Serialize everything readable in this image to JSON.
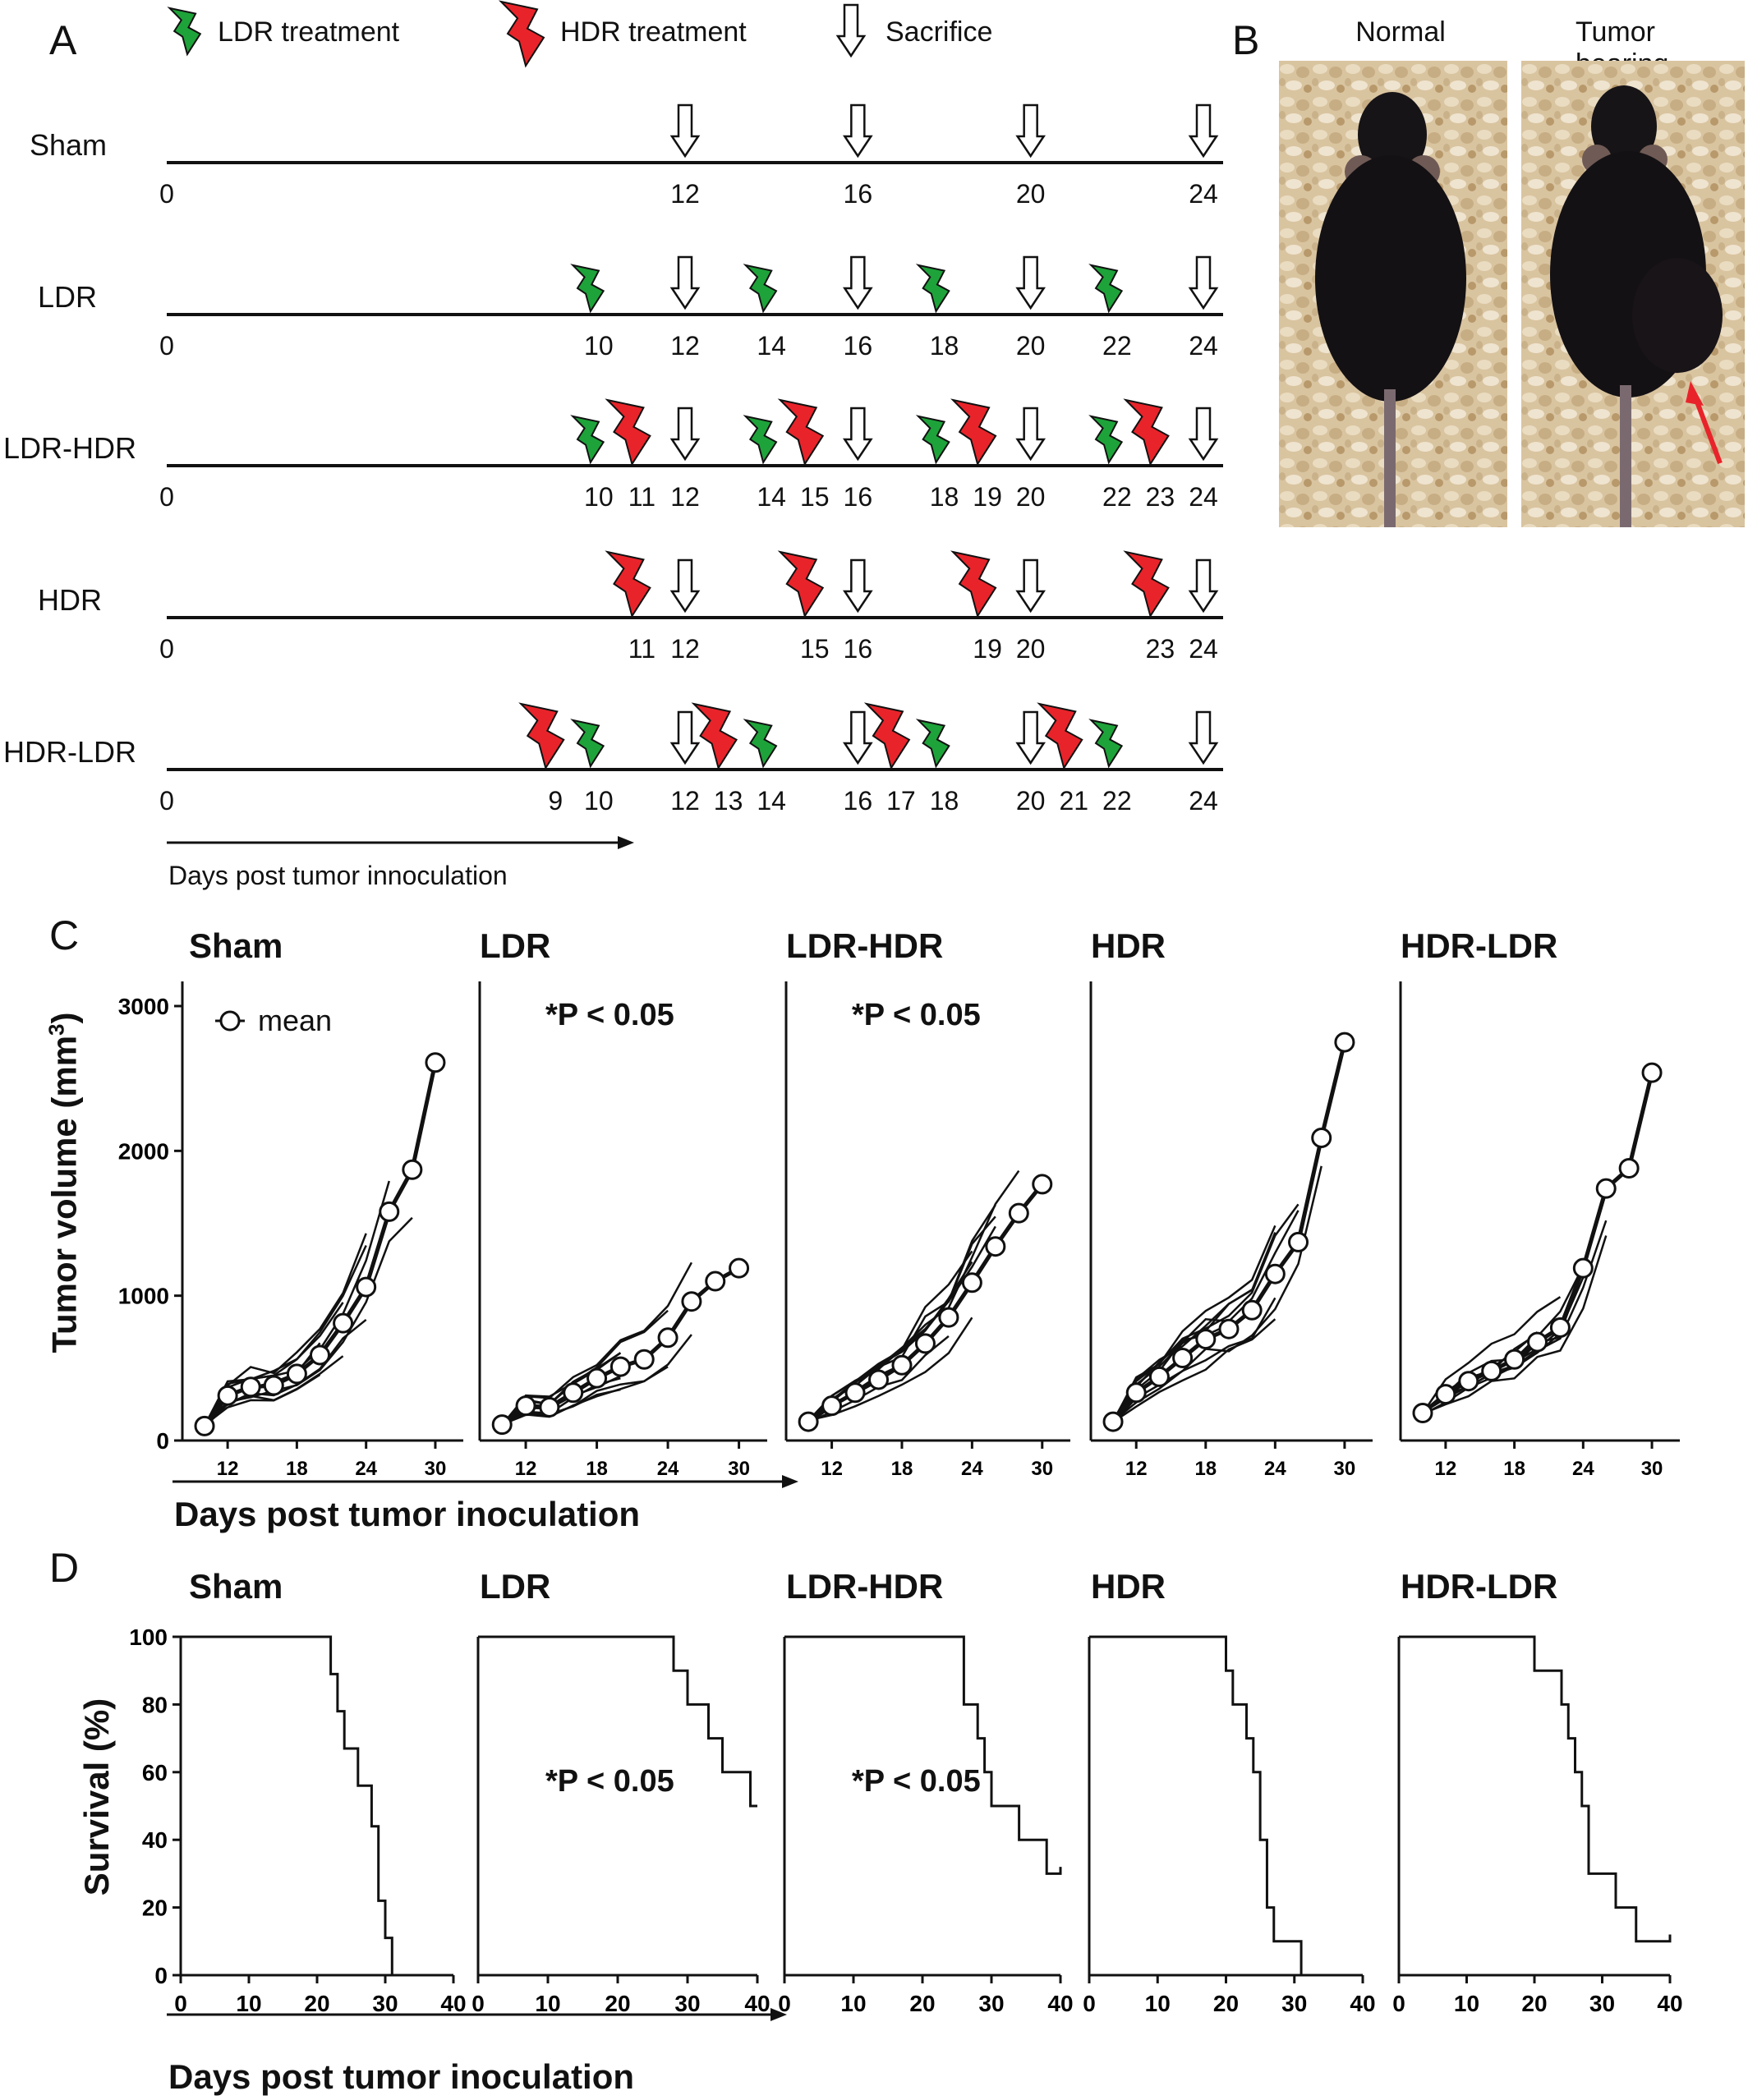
{
  "panel_a": {
    "letter": "A",
    "legend": {
      "ldr": "LDR treatment",
      "hdr": "HDR treatment",
      "sacrifice": "Sacrifice"
    },
    "xlabel": "Days post tumor innoculation",
    "day_max": 24,
    "colors": {
      "ldr": "#1ea33a",
      "hdr": "#e8242a"
    },
    "groups": [
      {
        "name": "Sham",
        "ldr": [],
        "hdr": [],
        "sac": [
          12,
          16,
          20,
          24
        ],
        "ticks": [
          0,
          12,
          16,
          20,
          24
        ]
      },
      {
        "name": "LDR",
        "ldr": [
          10,
          14,
          18,
          22
        ],
        "hdr": [],
        "sac": [
          12,
          16,
          20,
          24
        ],
        "ticks": [
          0,
          10,
          12,
          14,
          16,
          18,
          20,
          22,
          24
        ]
      },
      {
        "name": "LDR-HDR",
        "ldr": [
          10,
          14,
          18,
          22
        ],
        "hdr": [
          11,
          15,
          19,
          23
        ],
        "sac": [
          12,
          16,
          20,
          24
        ],
        "ticks": [
          0,
          10,
          11,
          12,
          14,
          15,
          16,
          18,
          19,
          20,
          22,
          23,
          24
        ]
      },
      {
        "name": "HDR",
        "ldr": [],
        "hdr": [
          11,
          15,
          19,
          23
        ],
        "sac": [
          12,
          16,
          20,
          24
        ],
        "ticks": [
          0,
          11,
          12,
          15,
          16,
          19,
          20,
          23,
          24
        ]
      },
      {
        "name": "HDR-LDR",
        "ldr": [
          10,
          14,
          18,
          22
        ],
        "hdr": [
          9,
          13,
          17,
          21
        ],
        "sac": [
          12,
          16,
          20,
          24
        ],
        "ticks": [
          0,
          9,
          10,
          12,
          13,
          14,
          16,
          17,
          18,
          20,
          21,
          22,
          24
        ]
      }
    ]
  },
  "panel_b": {
    "letter": "B",
    "photos": [
      {
        "title": "Normal"
      },
      {
        "title": "Tumor bearing"
      }
    ]
  },
  "panel_c": {
    "letter": "C",
    "ylabel": "Tumor volume (mm",
    "ylabel_sup": "3",
    "ylabel_close": ")",
    "xlabel": "Days post tumor inoculation",
    "legend_mean": "mean",
    "y_ticks": [
      0,
      1000,
      2000,
      3000
    ],
    "x_ticks": [
      12,
      18,
      24,
      30
    ],
    "pvalues": [
      "",
      "*P < 0.05",
      "*P < 0.05",
      "",
      ""
    ]
  },
  "panel_d": {
    "letter": "D",
    "ylabel": "Survival (%)",
    "xlabel": "Days post tumor inoculation",
    "y_ticks": [
      0,
      20,
      40,
      60,
      80,
      100
    ],
    "x_ticks": [
      0,
      10,
      20,
      30,
      40
    ],
    "pvalues": [
      "",
      "*P < 0.05",
      "*P < 0.05",
      "",
      ""
    ]
  },
  "chart_data": [
    {
      "type": "line",
      "panel": "C",
      "xlabel": "Days post tumor inoculation",
      "ylabel": "Tumor volume (mm3)",
      "xlim": [
        9.5,
        31
      ],
      "ylim": [
        0,
        3000
      ],
      "series": [
        {
          "name": "Sham",
          "x": [
            10,
            12,
            14,
            16,
            18,
            20,
            22,
            24,
            26,
            28,
            30
          ],
          "values": [
            100,
            310,
            370,
            380,
            460,
            590,
            810,
            1060,
            1580,
            1870,
            2610
          ]
        },
        {
          "name": "LDR",
          "x": [
            10,
            12,
            14,
            16,
            18,
            20,
            22,
            24,
            26,
            28,
            30
          ],
          "values": [
            110,
            240,
            230,
            330,
            430,
            510,
            560,
            710,
            960,
            1100,
            1190
          ]
        },
        {
          "name": "LDR-HDR",
          "x": [
            10,
            12,
            14,
            16,
            18,
            20,
            22,
            24,
            26,
            28,
            30
          ],
          "values": [
            130,
            240,
            330,
            420,
            520,
            670,
            850,
            1090,
            1340,
            1570,
            1770
          ]
        },
        {
          "name": "HDR",
          "x": [
            10,
            12,
            14,
            16,
            18,
            20,
            22,
            24,
            26,
            28,
            30
          ],
          "values": [
            130,
            330,
            440,
            570,
            700,
            770,
            900,
            1150,
            1370,
            2090,
            2750
          ]
        },
        {
          "name": "HDR-LDR",
          "x": [
            10,
            12,
            14,
            16,
            18,
            20,
            22,
            24,
            26,
            28,
            30
          ],
          "values": [
            190,
            320,
            410,
            480,
            560,
            680,
            780,
            1190,
            1740,
            1880,
            2540
          ]
        }
      ]
    },
    {
      "type": "line",
      "panel": "D",
      "xlabel": "Days post tumor inoculation",
      "ylabel": "Survival (%)",
      "xlim": [
        0,
        40
      ],
      "ylim": [
        0,
        100
      ],
      "series": [
        {
          "name": "Sham",
          "steps": [
            [
              0,
              100
            ],
            [
              22,
              100
            ],
            [
              22,
              89
            ],
            [
              23,
              89
            ],
            [
              23,
              78
            ],
            [
              24,
              78
            ],
            [
              24,
              67
            ],
            [
              26,
              67
            ],
            [
              26,
              56
            ],
            [
              28,
              56
            ],
            [
              28,
              44
            ],
            [
              29,
              44
            ],
            [
              29,
              22
            ],
            [
              30,
              22
            ],
            [
              30,
              11
            ],
            [
              31,
              11
            ],
            [
              31,
              0
            ]
          ]
        },
        {
          "name": "LDR",
          "steps": [
            [
              0,
              100
            ],
            [
              28,
              100
            ],
            [
              28,
              90
            ],
            [
              30,
              90
            ],
            [
              30,
              80
            ],
            [
              33,
              80
            ],
            [
              33,
              70
            ],
            [
              35,
              70
            ],
            [
              35,
              60
            ],
            [
              39,
              60
            ],
            [
              39,
              50
            ],
            [
              40,
              50
            ]
          ]
        },
        {
          "name": "LDR-HDR",
          "steps": [
            [
              0,
              100
            ],
            [
              26,
              100
            ],
            [
              26,
              80
            ],
            [
              28,
              80
            ],
            [
              28,
              70
            ],
            [
              29,
              70
            ],
            [
              29,
              60
            ],
            [
              30,
              60
            ],
            [
              30,
              50
            ],
            [
              34,
              50
            ],
            [
              34,
              40
            ],
            [
              38,
              40
            ],
            [
              38,
              30
            ],
            [
              40,
              30
            ],
            [
              40,
              32
            ]
          ]
        },
        {
          "name": "HDR",
          "steps": [
            [
              0,
              100
            ],
            [
              20,
              100
            ],
            [
              20,
              90
            ],
            [
              21,
              90
            ],
            [
              21,
              80
            ],
            [
              23,
              80
            ],
            [
              23,
              70
            ],
            [
              24,
              70
            ],
            [
              24,
              60
            ],
            [
              25,
              60
            ],
            [
              25,
              40
            ],
            [
              26,
              40
            ],
            [
              26,
              20
            ],
            [
              27,
              20
            ],
            [
              27,
              10
            ],
            [
              31,
              10
            ],
            [
              31,
              0
            ]
          ]
        },
        {
          "name": "HDR-LDR",
          "steps": [
            [
              0,
              100
            ],
            [
              20,
              100
            ],
            [
              20,
              90
            ],
            [
              24,
              90
            ],
            [
              24,
              80
            ],
            [
              25,
              80
            ],
            [
              25,
              70
            ],
            [
              26,
              70
            ],
            [
              26,
              60
            ],
            [
              27,
              60
            ],
            [
              27,
              50
            ],
            [
              28,
              50
            ],
            [
              28,
              30
            ],
            [
              32,
              30
            ],
            [
              32,
              20
            ],
            [
              35,
              20
            ],
            [
              35,
              10
            ],
            [
              40,
              10
            ],
            [
              40,
              12
            ]
          ]
        }
      ]
    }
  ]
}
